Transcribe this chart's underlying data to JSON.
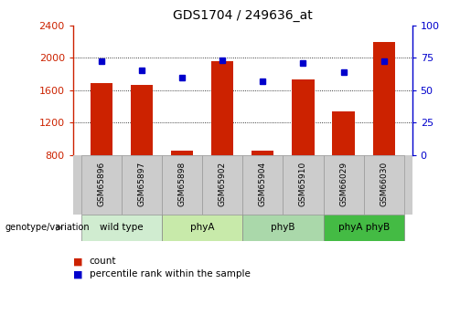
{
  "title": "GDS1704 / 249636_at",
  "samples": [
    "GSM65896",
    "GSM65897",
    "GSM65898",
    "GSM65902",
    "GSM65904",
    "GSM65910",
    "GSM66029",
    "GSM66030"
  ],
  "counts": [
    1690,
    1665,
    860,
    1960,
    855,
    1730,
    1340,
    2190
  ],
  "percentile_ranks": [
    72,
    65,
    60,
    73,
    57,
    71,
    64,
    72
  ],
  "ylim_left": [
    800,
    2400
  ],
  "ylim_right": [
    0,
    100
  ],
  "yticks_left": [
    800,
    1200,
    1600,
    2000,
    2400
  ],
  "yticks_right": [
    0,
    25,
    50,
    75,
    100
  ],
  "groups": [
    {
      "label": "wild type",
      "indices": [
        0,
        1
      ]
    },
    {
      "label": "phyA",
      "indices": [
        2,
        3
      ]
    },
    {
      "label": "phyB",
      "indices": [
        4,
        5
      ]
    },
    {
      "label": "phyA phyB",
      "indices": [
        6,
        7
      ]
    }
  ],
  "group_colors": [
    "#d0ecd0",
    "#c8eaaa",
    "#aad8aa",
    "#44bb44"
  ],
  "bar_color": "#cc2200",
  "marker_color": "#0000cc",
  "bar_width": 0.55,
  "bg_color": "#ffffff",
  "genotype_label": "genotype/variation",
  "legend_count": "count",
  "legend_percentile": "percentile rank within the sample",
  "left_tick_color": "#cc2200",
  "right_tick_color": "#0000cc"
}
